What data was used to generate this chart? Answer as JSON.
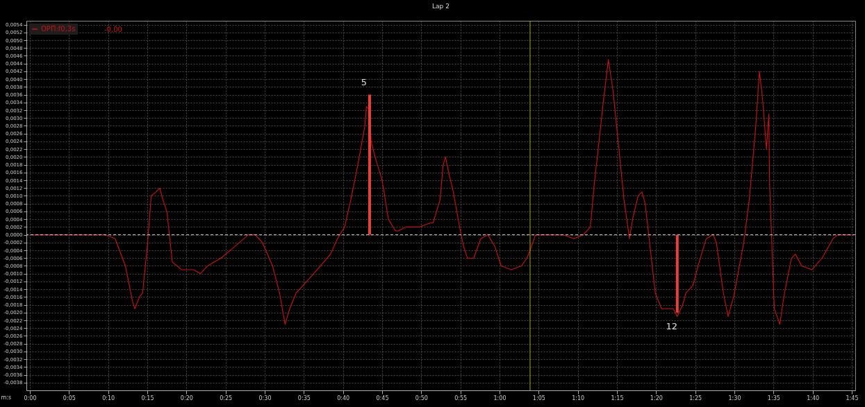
{
  "chart_data": {
    "type": "line",
    "title": "Lap 2",
    "xlabel": "m:s",
    "legend": "top left",
    "grid": true,
    "line_style": "solid",
    "x": [
      0,
      9.6,
      10.9,
      12.2,
      13.1,
      13.4,
      14.0,
      14.4,
      15.0,
      15.5,
      16.1,
      16.6,
      17.0,
      17.5,
      18.2,
      18.8,
      19.4,
      20.1,
      20.9,
      21.8,
      22.7,
      24.4,
      26.2,
      27.9,
      28.8,
      29.7,
      31.0,
      31.9,
      32.6,
      33.2,
      34.0,
      34.9,
      36.7,
      38.4,
      39.3,
      40.2,
      41.0,
      41.9,
      42.8,
      43.0,
      43.4,
      43.6,
      44.1,
      45.0,
      45.8,
      46.7,
      47.1,
      48.0,
      49.8,
      51.1,
      51.5,
      52.4,
      52.8,
      53.1,
      53.5,
      54.1,
      54.8,
      55.4,
      55.9,
      56.7,
      57.6,
      58.5,
      59.4,
      60.2,
      61.5,
      62.8,
      63.5,
      63.9,
      64.6,
      66.3,
      68.1,
      69.5,
      70.7,
      71.6,
      72.1,
      72.6,
      73.3,
      73.9,
      74.5,
      75.1,
      75.9,
      76.6,
      77.0,
      77.7,
      78.2,
      78.6,
      79.0,
      79.9,
      80.7,
      81.6,
      82.2,
      82.7,
      83.4,
      83.8,
      84.7,
      85.5,
      86.4,
      87.3,
      87.7,
      88.6,
      89.2,
      89.9,
      91.2,
      91.9,
      92.7,
      93.2,
      93.6,
      94.1,
      94.4,
      94.5,
      95.1,
      95.8,
      96.4,
      97.3,
      97.8,
      98.6,
      99.9,
      101.2,
      102.6,
      103.2,
      105.0
    ],
    "series": [
      {
        "name": "ОРП:f0,3s",
        "color": "#d01010",
        "values": [
          0,
          0,
          -0.0001,
          -0.0008,
          -0.0017,
          -0.0019,
          -0.0016,
          -0.0015,
          -0.0003,
          0.001,
          0.0011,
          0.0012,
          0.0009,
          0.0006,
          -0.0007,
          -0.0008,
          -0.0009,
          -0.0009,
          -0.0009,
          -0.001,
          -0.0008,
          -0.0006,
          -0.0003,
          0,
          0,
          -0.0002,
          -0.0008,
          -0.0015,
          -0.0023,
          -0.0019,
          -0.0015,
          -0.0013,
          -0.0009,
          -0.0005,
          -0.0001,
          0.0002,
          0.0009,
          0.0018,
          0.0028,
          0.0033,
          0.0032,
          0.0024,
          0.002,
          0.0014,
          0.0004,
          0.0001,
          0.0001,
          0.0002,
          0.0002,
          0.0003,
          0.0003,
          0.0009,
          0.0018,
          0.002,
          0.0016,
          0.0011,
          0.0003,
          -0.0003,
          -0.0006,
          -0.0006,
          -0.0001,
          0,
          -0.0003,
          -0.0008,
          -0.0009,
          -0.0008,
          -0.0006,
          -0.0004,
          0,
          0,
          0,
          -0.0001,
          0,
          0.0002,
          0.0013,
          0.0022,
          0.0035,
          0.0045,
          0.0037,
          0.0025,
          0.0009,
          -0.0001,
          0.0004,
          0.001,
          0.0011,
          0.0008,
          0.0001,
          -0.0015,
          -0.0019,
          -0.0019,
          -0.0019,
          -0.0021,
          -0.0018,
          -0.0015,
          -0.0013,
          -0.0007,
          -0.0001,
          0,
          -0.0002,
          -0.0015,
          -0.0021,
          -0.0016,
          -0.0002,
          0.0009,
          0.0027,
          0.0042,
          0.0035,
          0.0022,
          0.0031,
          0.0013,
          -0.0019,
          -0.0023,
          -0.0015,
          -0.0006,
          -0.0005,
          -0.0008,
          -0.0009,
          -0.0006,
          -0.0001,
          0,
          0
        ]
      },
      {
        "type": "bar",
        "color": "#e8403a",
        "x": [
          43.4,
          82.7
        ],
        "values": [
          0.0036,
          -0.002
        ]
      }
    ],
    "xlim": [
      0,
      105
    ],
    "xticks": [
      {
        "value": 0,
        "label": "0:00"
      },
      {
        "value": 5,
        "label": "0:05"
      },
      {
        "value": 10,
        "label": "0:10"
      },
      {
        "value": 15,
        "label": "0:15"
      },
      {
        "value": 20,
        "label": "0:20"
      },
      {
        "value": 25,
        "label": "0:25"
      },
      {
        "value": 30,
        "label": "0:30"
      },
      {
        "value": 35,
        "label": "0:35"
      },
      {
        "value": 40,
        "label": "0:40"
      },
      {
        "value": 45,
        "label": "0:45"
      },
      {
        "value": 50,
        "label": "0:50"
      },
      {
        "value": 55,
        "label": "0:55"
      },
      {
        "value": 60,
        "label": "1:00"
      },
      {
        "value": 65,
        "label": "1:05"
      },
      {
        "value": 70,
        "label": "1:10"
      },
      {
        "value": 75,
        "label": "1:15"
      },
      {
        "value": 80,
        "label": "1:20"
      },
      {
        "value": 85,
        "label": "1:25"
      },
      {
        "value": 90,
        "label": "1:30"
      },
      {
        "value": 95,
        "label": "1:35"
      },
      {
        "value": 100,
        "label": "1:40"
      },
      {
        "value": 105,
        "label": "1:45"
      }
    ],
    "ylim": [
      -0.004,
      0.0055
    ],
    "yticks": [
      {
        "value": -0.0038,
        "label": "-0,0038"
      },
      {
        "value": -0.0036,
        "label": "-0,0036"
      },
      {
        "value": -0.0034,
        "label": "-0,0034"
      },
      {
        "value": -0.0032,
        "label": "-0,0032"
      },
      {
        "value": -0.003,
        "label": "-0,0030"
      },
      {
        "value": -0.0028,
        "label": "-0,0028"
      },
      {
        "value": -0.0026,
        "label": "-0,0026"
      },
      {
        "value": -0.0024,
        "label": "-0,0024"
      },
      {
        "value": -0.0022,
        "label": "-0,0022"
      },
      {
        "value": -0.002,
        "label": "-0,0020"
      },
      {
        "value": -0.0018,
        "label": "-0,0018"
      },
      {
        "value": -0.0016,
        "label": "-0,0016"
      },
      {
        "value": -0.0014,
        "label": "-0,0014"
      },
      {
        "value": -0.0012,
        "label": "-0,0012"
      },
      {
        "value": -0.001,
        "label": "-0,0010"
      },
      {
        "value": -0.0008,
        "label": "-0,0008"
      },
      {
        "value": -0.0006,
        "label": "-0,0006"
      },
      {
        "value": -0.0004,
        "label": "-0,0004"
      },
      {
        "value": -0.0002,
        "label": "-0,0002"
      },
      {
        "value": 0,
        "label": "0,0000"
      },
      {
        "value": 0.0002,
        "label": "0,0002"
      },
      {
        "value": 0.0004,
        "label": "0,0004"
      },
      {
        "value": 0.0006,
        "label": "0,0006"
      },
      {
        "value": 0.0008,
        "label": "0,0008"
      },
      {
        "value": 0.001,
        "label": "0,0010"
      },
      {
        "value": 0.0012,
        "label": "0,0012"
      },
      {
        "value": 0.0014,
        "label": "0,0014"
      },
      {
        "value": 0.0016,
        "label": "0,0016"
      },
      {
        "value": 0.0018,
        "label": "0,0018"
      },
      {
        "value": 0.002,
        "label": "0,0020"
      },
      {
        "value": 0.0022,
        "label": "0,0022"
      },
      {
        "value": 0.0024,
        "label": "0,0024"
      },
      {
        "value": 0.0026,
        "label": "0,0026"
      },
      {
        "value": 0.0028,
        "label": "0,0028"
      },
      {
        "value": 0.003,
        "label": "0,0030"
      },
      {
        "value": 0.0032,
        "label": "0,0032"
      },
      {
        "value": 0.0034,
        "label": "0,0034"
      },
      {
        "value": 0.0036,
        "label": "0,0036"
      },
      {
        "value": 0.0038,
        "label": "0,0038"
      },
      {
        "value": 0.004,
        "label": "0,0040"
      },
      {
        "value": 0.0042,
        "label": "0,0042"
      },
      {
        "value": 0.0044,
        "label": "0,0044"
      },
      {
        "value": 0.0046,
        "label": "0,0046"
      },
      {
        "value": 0.0048,
        "label": "0,0048"
      },
      {
        "value": 0.005,
        "label": "0,0050"
      },
      {
        "value": 0.0052,
        "label": "0,0052"
      },
      {
        "value": 0.0054,
        "label": "0,0054"
      }
    ],
    "ref_lines": [
      {
        "axis": "y",
        "value": 0,
        "color": "#cccccc",
        "line_style": "dashed"
      },
      {
        "axis": "x",
        "value": 63.9,
        "color": "#a8a800",
        "line_style": "solid"
      }
    ],
    "annotations": [
      {
        "text": "5",
        "x": 43.4,
        "y": 0.0036
      },
      {
        "text": "12",
        "x": 82.7,
        "y": -0.002
      },
      "-0,00"
    ]
  }
}
